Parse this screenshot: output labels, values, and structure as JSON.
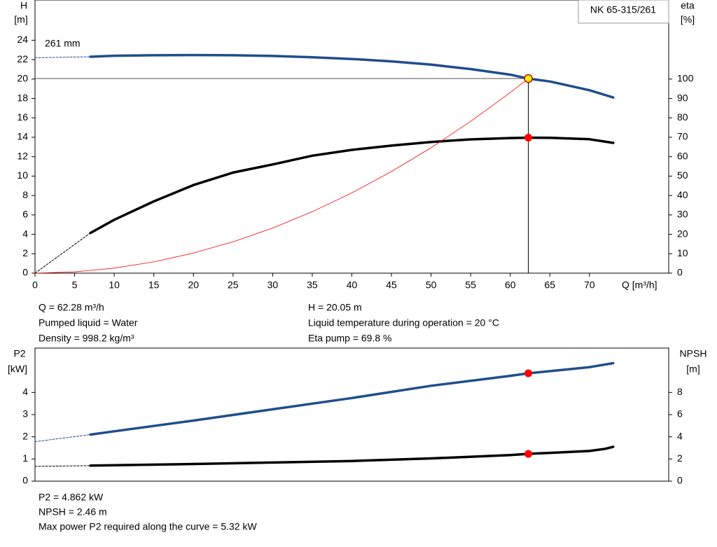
{
  "chart_data": [
    {
      "type": "line",
      "title": "NK 65-315/261",
      "annotation": "261 mm",
      "y_label": [
        "H",
        "[m]"
      ],
      "y2_label": [
        "eta",
        "[%]"
      ],
      "x_label": "Q [m³/h]",
      "xlim": [
        0,
        80
      ],
      "xticks": [
        0,
        5,
        10,
        15,
        20,
        25,
        30,
        35,
        40,
        45,
        50,
        55,
        60,
        65,
        70
      ],
      "ylim": [
        0,
        28
      ],
      "yticks": [
        0,
        2,
        4,
        6,
        8,
        10,
        12,
        14,
        16,
        18,
        20,
        22,
        24
      ],
      "y2lim": [
        0,
        140
      ],
      "y2ticks": [
        0,
        10,
        20,
        30,
        40,
        50,
        60,
        70,
        80,
        90,
        100
      ],
      "series": [
        {
          "x": [
            0,
            7
          ],
          "values": [
            22.2,
            22.3
          ],
          "color": "#1f4e8c",
          "width": 1,
          "dashed": true
        },
        {
          "x": [
            7,
            10,
            15,
            20,
            25,
            30,
            35,
            40,
            45,
            50,
            55,
            60,
            62.28,
            65,
            70,
            73
          ],
          "values": [
            22.3,
            22.4,
            22.45,
            22.47,
            22.45,
            22.38,
            22.25,
            22.07,
            21.82,
            21.48,
            21.03,
            20.45,
            20.05,
            19.75,
            18.85,
            18.1
          ],
          "color": "#1f4e8c",
          "width": 3.5
        },
        {
          "x": [
            0,
            7
          ],
          "values": [
            0,
            20.7
          ],
          "color": "#000000",
          "width": 1,
          "dashed": true,
          "axis": "y2"
        },
        {
          "x": [
            7,
            10,
            15,
            20,
            25,
            30,
            35,
            40,
            45,
            50,
            55,
            60,
            62.28,
            65,
            70,
            73
          ],
          "values": [
            20.7,
            27.5,
            37,
            45.4,
            51.8,
            56,
            60.5,
            63.5,
            65.7,
            67.6,
            68.9,
            69.6,
            69.8,
            69.7,
            69,
            67.1
          ],
          "color": "#000000",
          "width": 3.5,
          "axis": "y2"
        },
        {
          "x": [
            0,
            5,
            10,
            15,
            20,
            25,
            30,
            35,
            40,
            45,
            50,
            55,
            60,
            62.28
          ],
          "values": [
            0,
            0.13,
            0.52,
            1.16,
            2.07,
            3.23,
            4.65,
            6.33,
            8.27,
            10.47,
            12.92,
            15.64,
            18.61,
            20.05
          ],
          "color": "#ff0000",
          "width": 0.8
        }
      ],
      "points": [
        {
          "x": 62.28,
          "y": 20.05,
          "color": "#ffff00",
          "guides": true
        },
        {
          "x": 62.28,
          "y": 69.8,
          "color": "#ff0000",
          "axis": "y2"
        }
      ],
      "notes_left": [
        "Q = 62.28 m³/h",
        "Pumped liquid = Water",
        "Density = 998.2 kg/m³"
      ],
      "notes_right": [
        "H = 20.05 m",
        "Liquid temperature during operation = 20 °C",
        "Eta pump = 69.8 %"
      ]
    },
    {
      "type": "line",
      "y_label": [
        "P2",
        "[kW]"
      ],
      "y2_label": [
        "NPSH",
        "[m]"
      ],
      "xlim": [
        0,
        80
      ],
      "ylim": [
        0,
        6
      ],
      "yticks": [
        0,
        1,
        2,
        3,
        4
      ],
      "y2lim": [
        0,
        12
      ],
      "y2ticks": [
        0,
        2,
        4,
        6,
        8
      ],
      "series": [
        {
          "x": [
            0,
            7
          ],
          "values": [
            1.78,
            2.1
          ],
          "color": "#1f4e8c",
          "width": 1,
          "dashed": true
        },
        {
          "x": [
            7,
            10,
            20,
            30,
            40,
            50,
            60,
            62.28,
            70,
            73
          ],
          "values": [
            2.1,
            2.25,
            2.73,
            3.24,
            3.75,
            4.3,
            4.75,
            4.862,
            5.14,
            5.32
          ],
          "color": "#1f4e8c",
          "width": 3.5
        },
        {
          "x": [
            0,
            7
          ],
          "values": [
            1.33,
            1.4
          ],
          "color": "#000000",
          "width": 1,
          "dashed": true,
          "axis": "y2"
        },
        {
          "x": [
            7,
            20,
            30,
            40,
            50,
            60,
            62.28,
            65,
            68,
            70,
            72,
            73
          ],
          "values": [
            1.4,
            1.55,
            1.68,
            1.82,
            2.05,
            2.35,
            2.46,
            2.55,
            2.65,
            2.72,
            2.92,
            3.1
          ],
          "color": "#000000",
          "width": 3.5,
          "axis": "y2"
        }
      ],
      "points": [
        {
          "x": 62.28,
          "y": 4.862,
          "color": "#ff0000"
        },
        {
          "x": 62.28,
          "y": 2.46,
          "color": "#ff0000",
          "axis": "y2"
        }
      ],
      "notes": [
        "P2 = 4.862 kW",
        "NPSH = 2.46 m",
        "Max power P2 required along the curve = 5.32 kW"
      ]
    }
  ]
}
